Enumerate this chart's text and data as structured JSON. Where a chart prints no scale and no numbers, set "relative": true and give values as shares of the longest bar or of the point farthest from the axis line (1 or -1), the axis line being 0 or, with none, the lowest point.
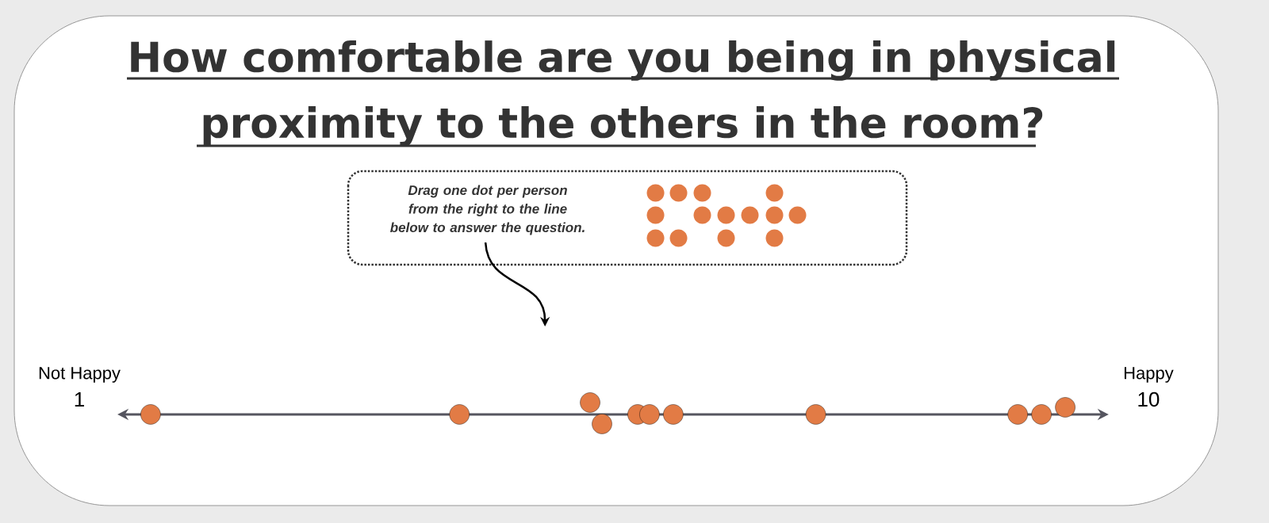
{
  "chart_data": {
    "type": "scatter",
    "title": "How comfortable are you being in physical proximity to the others in the room?",
    "x": [
      1.6,
      4.2,
      5.3,
      5.4,
      5.7,
      5.8,
      6.0,
      7.2,
      8.9,
      9.1,
      9.3
    ],
    "values": [
      0,
      0,
      1,
      -0.8,
      0,
      0,
      0,
      0,
      0,
      0,
      0.6
    ],
    "relative": true,
    "color": "#e27b45",
    "marker": "circle",
    "xlim": [
      1,
      10
    ],
    "xticks": [
      1,
      10
    ],
    "tick_labels": "x",
    "annotations": [
      "Not Happy",
      "Happy",
      "Drag one dot per person from the right to the line below to answer the question."
    ]
  }
}
